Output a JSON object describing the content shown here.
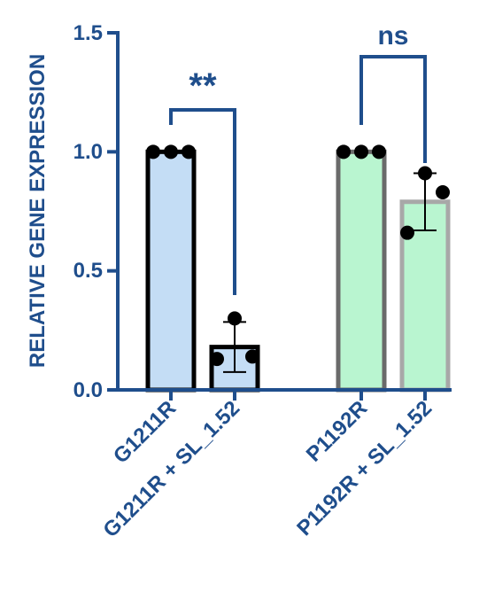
{
  "chart_data": {
    "type": "bar",
    "title": "",
    "xlabel": "",
    "ylabel": "RELATIVE GENE EXPRESSION",
    "ylim": [
      0,
      1.5
    ],
    "yticks": [
      "0.0",
      "0.5",
      "1.0",
      "1.5"
    ],
    "grid": false,
    "categories": [
      "G1211R",
      "G1211R + SL_1.52",
      "P1192R",
      "P1192R + SL_1.52"
    ],
    "values": [
      1.0,
      0.18,
      1.0,
      0.79
    ],
    "error": [
      0,
      0.105,
      0,
      0.12
    ],
    "points": [
      [
        1.0,
        1.0,
        1.0
      ],
      [
        0.3,
        0.14,
        0.13
      ],
      [
        1.0,
        1.0,
        1.0
      ],
      [
        0.91,
        0.83,
        0.66
      ]
    ],
    "bar_fill": [
      "#c4ddf5",
      "#c4ddf5",
      "#b9f5d0",
      "#b9f5d0"
    ],
    "bar_edge": [
      "#000000",
      "#000000",
      "#6a6a6a",
      "#a8a8a8"
    ],
    "point_color": "#000000",
    "axis_color": "#1f4e8c",
    "significance": [
      {
        "pair": [
          0,
          1
        ],
        "label": "**"
      },
      {
        "pair": [
          2,
          3
        ],
        "label": "ns"
      }
    ]
  }
}
